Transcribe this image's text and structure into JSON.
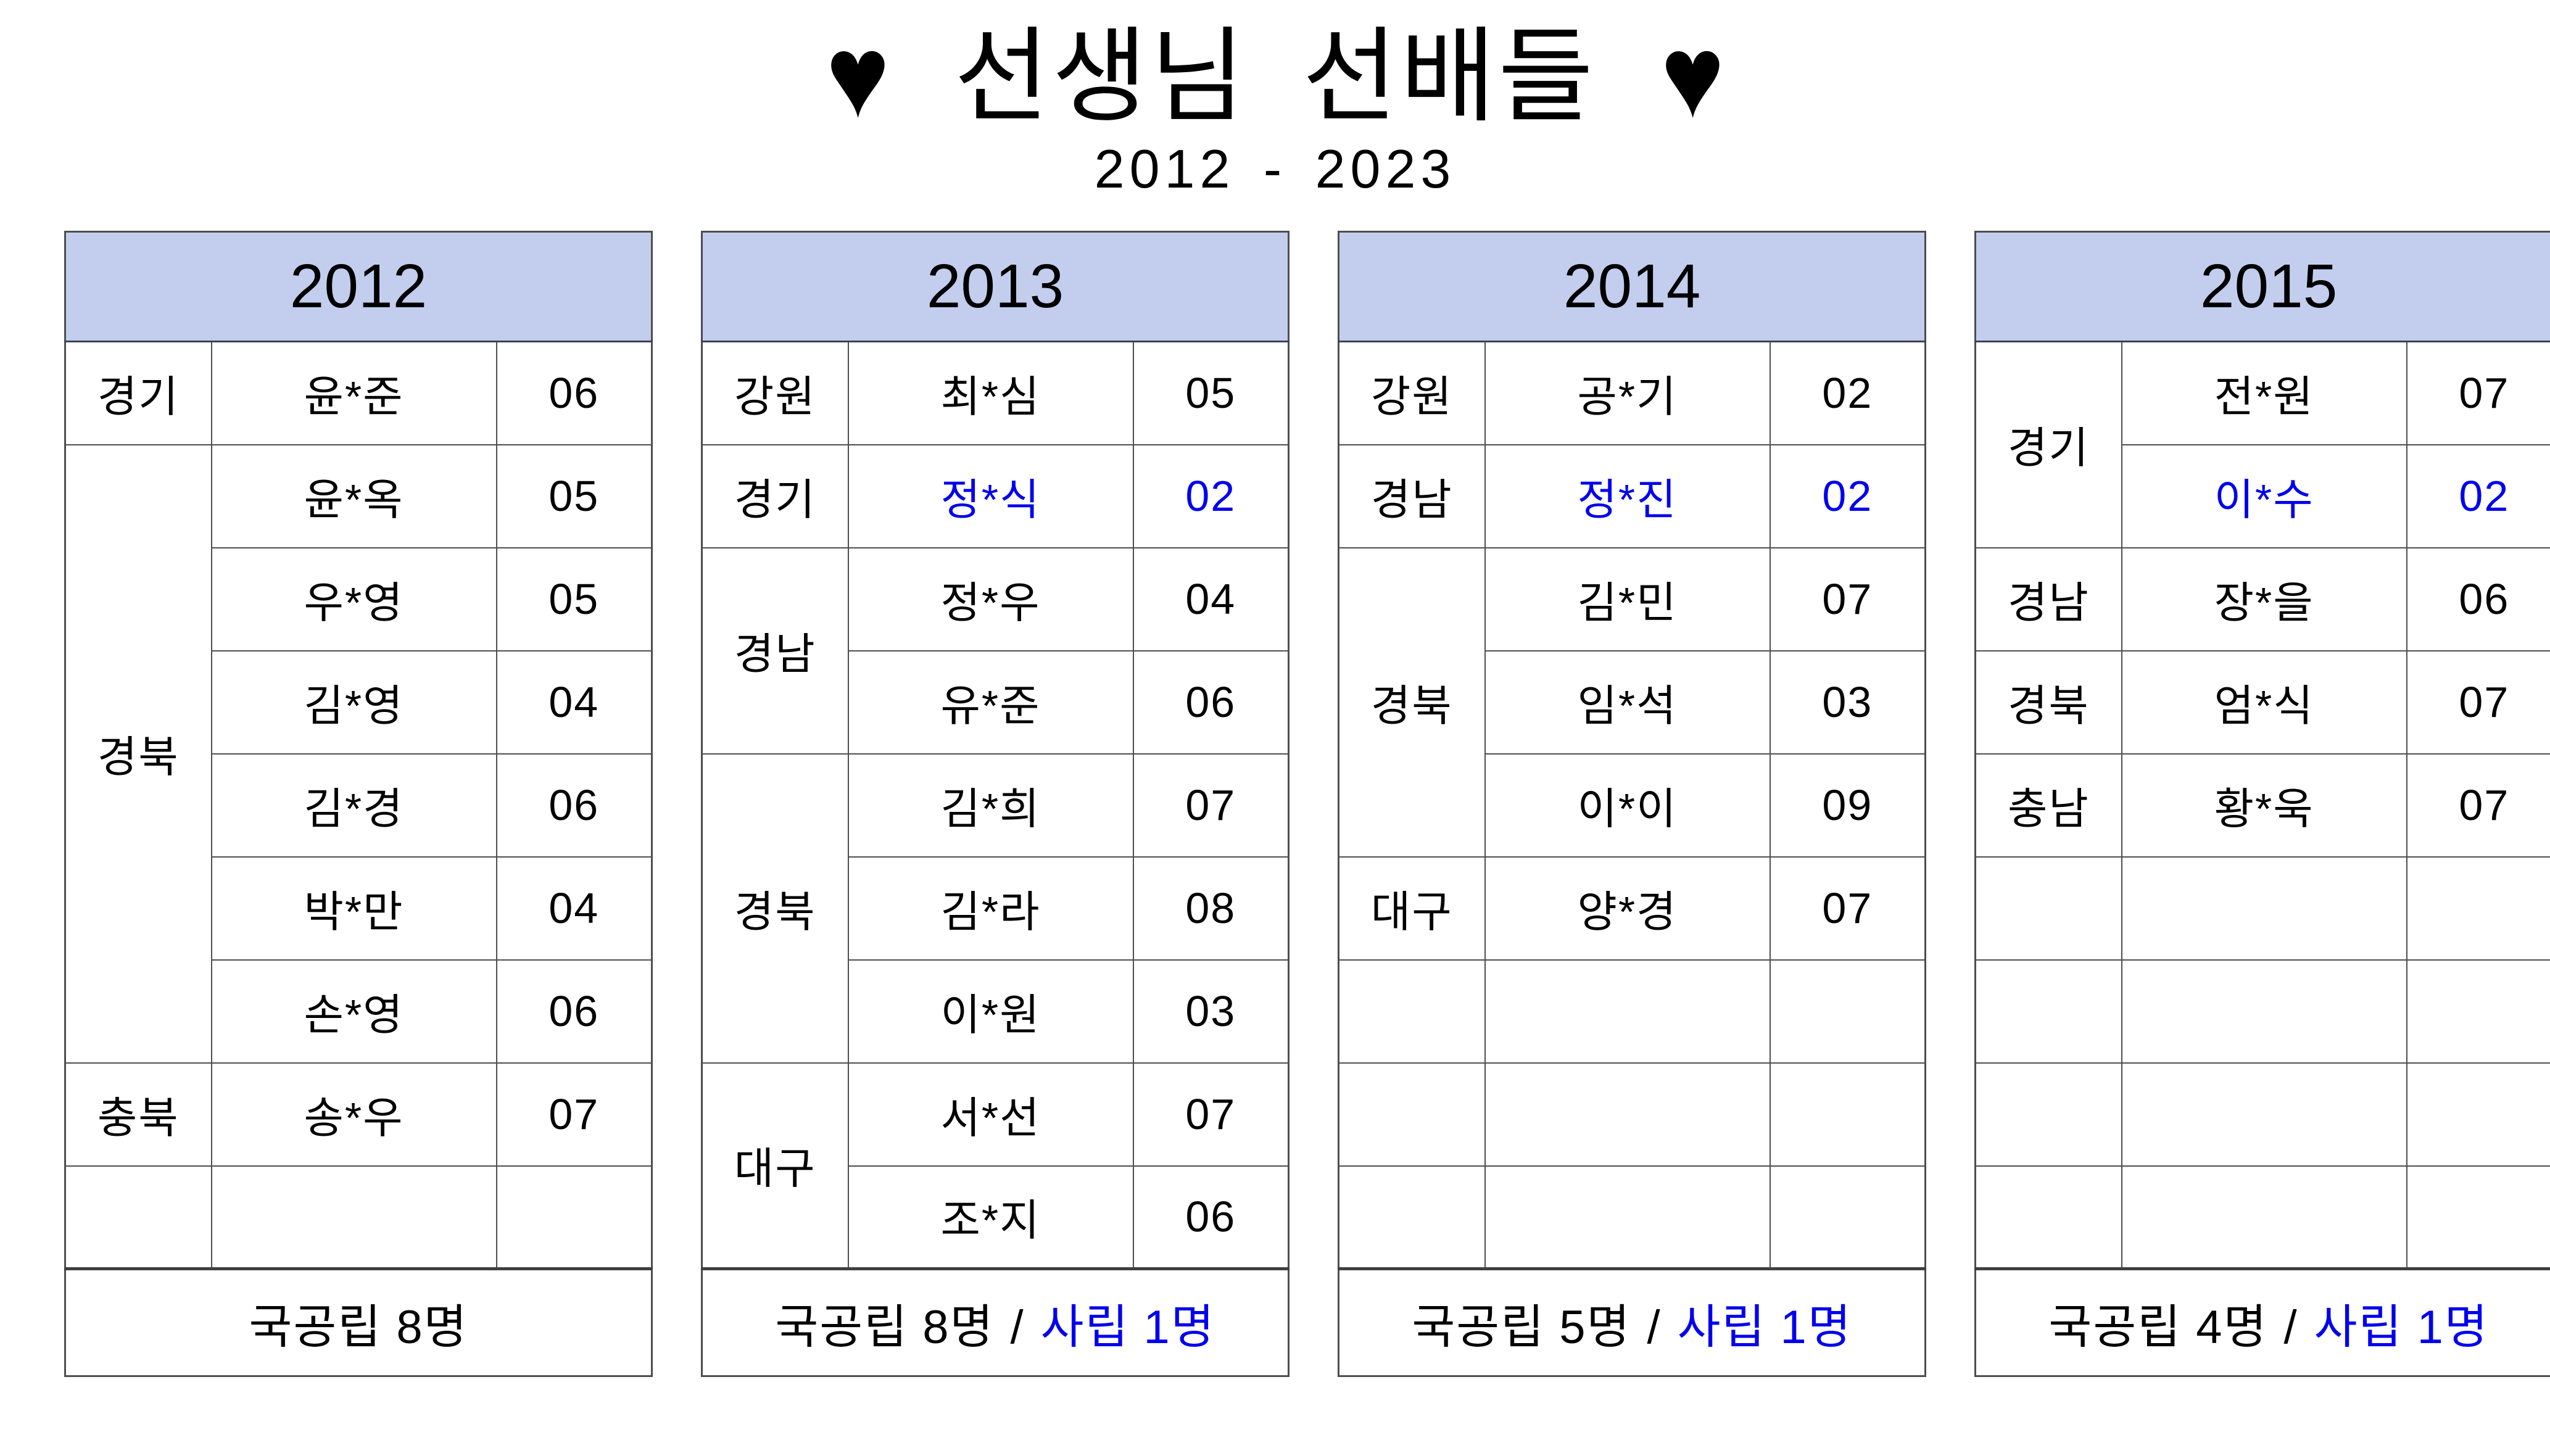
{
  "page": {
    "title": "선생님 선배들",
    "title_heart_left": "♥",
    "title_heart_right": "♥",
    "subtitle": "2012 - 2023"
  },
  "colors": {
    "header_bg": "#c3ceee",
    "accent_blue": "#0000ee",
    "border": "#4e4e4e"
  },
  "tables": [
    {
      "year": "2012",
      "rows": [
        {
          "region": {
            "label": "경기",
            "span": 1
          },
          "name": "윤*준",
          "num": "06",
          "blue": false
        },
        {
          "region": {
            "label": "경북",
            "span": 6
          },
          "name": "윤*옥",
          "num": "05",
          "blue": false
        },
        {
          "region": null,
          "name": "우*영",
          "num": "05",
          "blue": false
        },
        {
          "region": null,
          "name": "김*영",
          "num": "04",
          "blue": false
        },
        {
          "region": null,
          "name": "김*경",
          "num": "06",
          "blue": false
        },
        {
          "region": null,
          "name": "박*만",
          "num": "04",
          "blue": false
        },
        {
          "region": null,
          "name": "손*영",
          "num": "06",
          "blue": false
        },
        {
          "region": {
            "label": "충북",
            "span": 1
          },
          "name": "송*우",
          "num": "07",
          "blue": false
        },
        {
          "region": {
            "label": "",
            "span": 1
          },
          "name": "",
          "num": "",
          "blue": false
        }
      ],
      "summary": {
        "public": "국공립 8명",
        "separator": null,
        "private": null
      }
    },
    {
      "year": "2013",
      "rows": [
        {
          "region": {
            "label": "강원",
            "span": 1
          },
          "name": "최*심",
          "num": "05",
          "blue": false
        },
        {
          "region": {
            "label": "경기",
            "span": 1
          },
          "name": "정*식",
          "num": "02",
          "blue": true
        },
        {
          "region": {
            "label": "경남",
            "span": 2
          },
          "name": "정*우",
          "num": "04",
          "blue": false
        },
        {
          "region": null,
          "name": "유*준",
          "num": "06",
          "blue": false
        },
        {
          "region": {
            "label": "경북",
            "span": 3
          },
          "name": "김*희",
          "num": "07",
          "blue": false
        },
        {
          "region": null,
          "name": "김*라",
          "num": "08",
          "blue": false
        },
        {
          "region": null,
          "name": "이*원",
          "num": "03",
          "blue": false
        },
        {
          "region": {
            "label": "대구",
            "span": 2
          },
          "name": "서*선",
          "num": "07",
          "blue": false
        },
        {
          "region": null,
          "name": "조*지",
          "num": "06",
          "blue": false
        }
      ],
      "summary": {
        "public": "국공립 8명",
        "separator": "/",
        "private": "사립 1명"
      }
    },
    {
      "year": "2014",
      "rows": [
        {
          "region": {
            "label": "강원",
            "span": 1
          },
          "name": "공*기",
          "num": "02",
          "blue": false
        },
        {
          "region": {
            "label": "경남",
            "span": 1
          },
          "name": "정*진",
          "num": "02",
          "blue": true
        },
        {
          "region": {
            "label": "경북",
            "span": 3
          },
          "name": "김*민",
          "num": "07",
          "blue": false
        },
        {
          "region": null,
          "name": "임*석",
          "num": "03",
          "blue": false
        },
        {
          "region": null,
          "name": "이*이",
          "num": "09",
          "blue": false
        },
        {
          "region": {
            "label": "대구",
            "span": 1
          },
          "name": "양*경",
          "num": "07",
          "blue": false
        },
        {
          "region": {
            "label": "",
            "span": 1
          },
          "name": "",
          "num": "",
          "blue": false
        },
        {
          "region": {
            "label": "",
            "span": 1
          },
          "name": "",
          "num": "",
          "blue": false
        },
        {
          "region": {
            "label": "",
            "span": 1
          },
          "name": "",
          "num": "",
          "blue": false
        }
      ],
      "summary": {
        "public": "국공립 5명",
        "separator": "/",
        "private": "사립 1명"
      }
    },
    {
      "year": "2015",
      "rows": [
        {
          "region": {
            "label": "경기",
            "span": 2
          },
          "name": "전*원",
          "num": "07",
          "blue": false
        },
        {
          "region": null,
          "name": "이*수",
          "num": "02",
          "blue": true
        },
        {
          "region": {
            "label": "경남",
            "span": 1
          },
          "name": "장*을",
          "num": "06",
          "blue": false
        },
        {
          "region": {
            "label": "경북",
            "span": 1
          },
          "name": "엄*식",
          "num": "07",
          "blue": false
        },
        {
          "region": {
            "label": "충남",
            "span": 1
          },
          "name": "황*욱",
          "num": "07",
          "blue": false
        },
        {
          "region": {
            "label": "",
            "span": 1
          },
          "name": "",
          "num": "",
          "blue": false
        },
        {
          "region": {
            "label": "",
            "span": 1
          },
          "name": "",
          "num": "",
          "blue": false
        },
        {
          "region": {
            "label": "",
            "span": 1
          },
          "name": "",
          "num": "",
          "blue": false
        },
        {
          "region": {
            "label": "",
            "span": 1
          },
          "name": "",
          "num": "",
          "blue": false
        }
      ],
      "summary": {
        "public": "국공립 4명",
        "separator": "/",
        "private": "사립 1명"
      }
    }
  ]
}
